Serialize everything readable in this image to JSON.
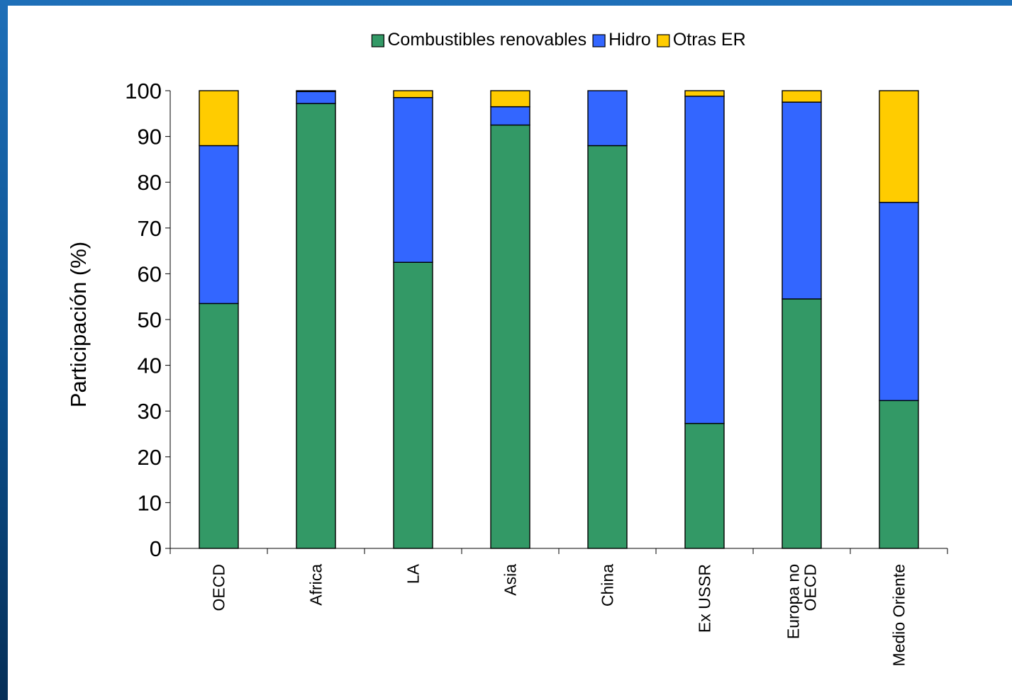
{
  "chart_data": {
    "type": "bar",
    "stacked": true,
    "categories": [
      [
        "OECD"
      ],
      [
        "Africa"
      ],
      [
        "LA"
      ],
      [
        "Asia"
      ],
      [
        "China"
      ],
      [
        "Ex USSR"
      ],
      [
        "Europa no",
        "OECD"
      ],
      [
        "Medio Oriente"
      ]
    ],
    "series": [
      {
        "name": "Combustibles renovables",
        "color": "#339966",
        "values": [
          53.5,
          97.2,
          62.5,
          92.5,
          88.0,
          27.3,
          54.5,
          32.3
        ]
      },
      {
        "name": "Hidro",
        "color": "#3366ff",
        "values": [
          34.5,
          2.6,
          36.0,
          4.0,
          12.0,
          71.5,
          43.0,
          43.3
        ]
      },
      {
        "name": "Otras ER",
        "color": "#ffcc00",
        "values": [
          12.0,
          0.2,
          1.5,
          3.5,
          0.0,
          1.2,
          2.5,
          24.4
        ]
      }
    ],
    "title": "",
    "xlabel": "",
    "ylabel": "Participación (%)",
    "ylim": [
      0,
      100
    ],
    "yticks": [
      0,
      10,
      20,
      30,
      40,
      50,
      60,
      70,
      80,
      90,
      100
    ],
    "grid": false,
    "legend": "top-center"
  }
}
